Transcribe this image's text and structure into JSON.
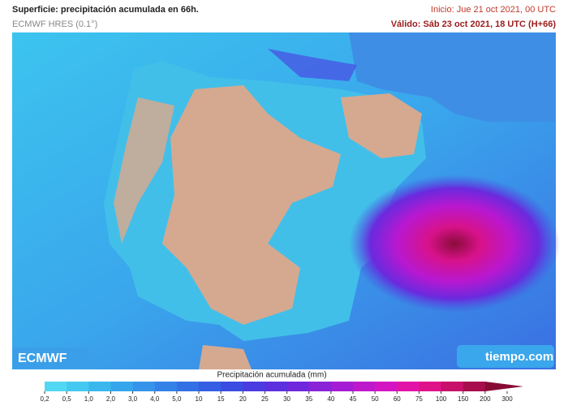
{
  "header": {
    "title": "Superficie: precipitación acumulada en 66h.",
    "model": "ECMWF HRES (0.1°)",
    "init": "Inicio: Jue 21 oct 2021, 00 UTC",
    "valid": "Válido: Sáb 23 oct 2021, 18 UTC (H+66)"
  },
  "logos": {
    "left": "ECMWF",
    "right": "tiempo.com"
  },
  "colorbar": {
    "label": "Precipitación acumulada (mm)",
    "ticks": [
      "0,2",
      "0,5",
      "1,0",
      "2,0",
      "3,0",
      "4,0",
      "5,0",
      "10",
      "15",
      "20",
      "25",
      "30",
      "35",
      "40",
      "45",
      "50",
      "60",
      "75",
      "100",
      "150",
      "200",
      "300"
    ],
    "colors": [
      "#52d8f2",
      "#45c9f0",
      "#3ab8ee",
      "#36a6ec",
      "#3594ea",
      "#3482e8",
      "#3370e6",
      "#345ee4",
      "#3a4ce2",
      "#4a3ce0",
      "#5c30de",
      "#7028dc",
      "#8a22d8",
      "#a41cd4",
      "#be18cc",
      "#d416c2",
      "#e214a8",
      "#e0128a",
      "#c8106a",
      "#a80e4e",
      "#860c36"
    ]
  }
}
